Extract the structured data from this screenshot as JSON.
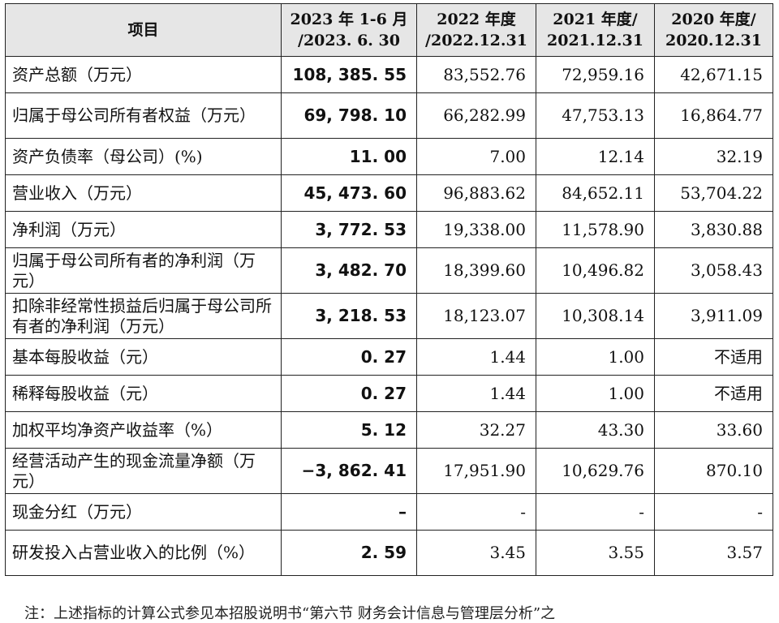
{
  "header": {
    "item": "项目",
    "col1_line1": "2023 年 1-6 月",
    "col1_line2": "/2023. 6. 30",
    "col2_line1": "2022 年度",
    "col2_line2": "/2022.12.31",
    "col3_line1": "2021 年度/",
    "col3_line2": "2021.12.31",
    "col4_line1": "2020 年度/",
    "col4_line2": "2020.12.31"
  },
  "rows": [
    {
      "label": "资产总额（万元）",
      "v1": "108, 385. 55",
      "v2": "83,552.76",
      "v3": "72,959.16",
      "v4": "42,671.15"
    },
    {
      "label": "归属于母公司所有者权益（万元）",
      "v1": "69, 798. 10",
      "v2": "66,282.99",
      "v3": "47,753.13",
      "v4": "16,864.77"
    },
    {
      "label": "资产负债率（母公司）(%)",
      "v1": "11. 00",
      "v2": "7.00",
      "v3": "12.14",
      "v4": "32.19"
    },
    {
      "label": "营业收入（万元）",
      "v1": "45, 473. 60",
      "v2": "96,883.62",
      "v3": "84,652.11",
      "v4": "53,704.22"
    },
    {
      "label": "净利润（万元）",
      "v1": "3, 772. 53",
      "v2": "19,338.00",
      "v3": "11,578.90",
      "v4": "3,830.88"
    },
    {
      "label": "归属于母公司所有者的净利润（万元）",
      "v1": "3, 482. 70",
      "v2": "18,399.60",
      "v3": "10,496.82",
      "v4": "3,058.43"
    },
    {
      "label": "扣除非经常性损益后归属于母公司所有者的净利润（万元）",
      "v1": "3, 218. 53",
      "v2": "18,123.07",
      "v3": "10,308.14",
      "v4": "3,911.09"
    },
    {
      "label": "基本每股收益（元）",
      "v1": "0. 27",
      "v2": "1.44",
      "v3": "1.00",
      "v4": "不适用"
    },
    {
      "label": "稀释每股收益（元）",
      "v1": "0. 27",
      "v2": "1.44",
      "v3": "1.00",
      "v4": "不适用"
    },
    {
      "label": "加权平均净资产收益率（%）",
      "v1": "5. 12",
      "v2": "32.27",
      "v3": "43.30",
      "v4": "33.60"
    },
    {
      "label": "经营活动产生的现金流量净额（万元）",
      "v1": "−3, 862. 41",
      "v2": "17,951.90",
      "v3": "10,629.76",
      "v4": "870.10"
    },
    {
      "label": "现金分红（万元）",
      "v1": "–",
      "v2": "-",
      "v3": "-",
      "v4": "-"
    },
    {
      "label": "研发投入占营业收入的比例（%）",
      "v1": "2. 59",
      "v2": "3.45",
      "v3": "3.55",
      "v4": "3.57"
    }
  ],
  "footnote": "注：上述指标的计算公式参见本招股说明书“第六节 财务会计信息与管理层分析”之"
}
